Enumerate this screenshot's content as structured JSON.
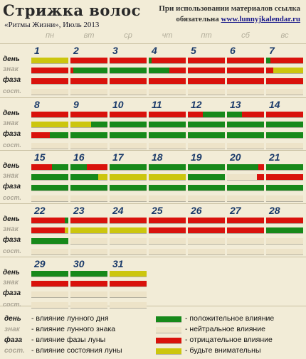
{
  "title": "Стрижка волос",
  "subtitle": "«Ритмы Жизни», Июль 2013",
  "note_line1": "При использовании материалов ссылка",
  "note_line2_prefix": "обязательна ",
  "note_link": "www.lunnyjkalendar.ru",
  "day_names": [
    "пн",
    "вт",
    "ср",
    "чт",
    "пт",
    "сб",
    "вс"
  ],
  "row_labels": [
    "день",
    "знак",
    "фаза",
    "сост."
  ],
  "colors": {
    "G": "#17891a",
    "R": "#d9120c",
    "Y": "#ccc60e",
    "N": "#ede3c8",
    "border": "#c9c0a2"
  },
  "days": [
    {
      "day": 1,
      "den": [
        [
          "Y",
          100
        ]
      ],
      "znak": [
        [
          "R",
          100
        ]
      ],
      "faza": [
        [
          "R",
          100
        ]
      ]
    },
    {
      "day": 2,
      "den": [
        [
          "R",
          100
        ]
      ],
      "znak": [
        [
          "R",
          8
        ],
        [
          "G",
          92
        ]
      ],
      "faza": [
        [
          "R",
          100
        ]
      ]
    },
    {
      "day": 3,
      "den": [
        [
          "R",
          100
        ]
      ],
      "znak": [
        [
          "G",
          100
        ]
      ],
      "faza": [
        [
          "R",
          100
        ]
      ]
    },
    {
      "day": 4,
      "den": [
        [
          "G",
          8
        ],
        [
          "R",
          92
        ]
      ],
      "znak": [
        [
          "G",
          55
        ],
        [
          "R",
          45
        ]
      ],
      "faza": [
        [
          "R",
          100
        ]
      ]
    },
    {
      "day": 5,
      "den": [
        [
          "R",
          100
        ]
      ],
      "znak": [
        [
          "R",
          100
        ]
      ],
      "faza": [
        [
          "R",
          100
        ]
      ]
    },
    {
      "day": 6,
      "den": [
        [
          "R",
          100
        ]
      ],
      "znak": [
        [
          "R",
          100
        ]
      ],
      "faza": [
        [
          "R",
          100
        ]
      ]
    },
    {
      "day": 7,
      "den": [
        [
          "G",
          12
        ],
        [
          "R",
          88
        ]
      ],
      "znak": [
        [
          "R",
          20
        ],
        [
          "Y",
          80
        ]
      ],
      "faza": [
        [
          "R",
          100
        ]
      ]
    },
    {
      "day": 8,
      "den": [
        [
          "R",
          100
        ]
      ],
      "znak": [
        [
          "Y",
          100
        ]
      ],
      "faza": [
        [
          "R",
          50
        ],
        [
          "G",
          50
        ]
      ]
    },
    {
      "day": 9,
      "den": [
        [
          "R",
          100
        ]
      ],
      "znak": [
        [
          "Y",
          55
        ],
        [
          "G",
          45
        ]
      ],
      "faza": [
        [
          "G",
          100
        ]
      ]
    },
    {
      "day": 10,
      "den": [
        [
          "R",
          100
        ]
      ],
      "znak": [
        [
          "G",
          100
        ]
      ],
      "faza": [
        [
          "G",
          100
        ]
      ]
    },
    {
      "day": 11,
      "den": [
        [
          "R",
          100
        ]
      ],
      "znak": [
        [
          "G",
          100
        ]
      ],
      "faza": [
        [
          "G",
          100
        ]
      ]
    },
    {
      "day": 12,
      "den": [
        [
          "R",
          40
        ],
        [
          "G",
          60
        ]
      ],
      "znak": [
        [
          "G",
          100
        ]
      ],
      "faza": [
        [
          "G",
          100
        ]
      ]
    },
    {
      "day": 13,
      "den": [
        [
          "G",
          40
        ],
        [
          "R",
          60
        ]
      ],
      "znak": [
        [
          "G",
          100
        ]
      ],
      "faza": [
        [
          "G",
          100
        ]
      ]
    },
    {
      "day": 14,
      "den": [
        [
          "R",
          100
        ]
      ],
      "znak": [
        [
          "G",
          100
        ]
      ],
      "faza": [
        [
          "G",
          100
        ]
      ]
    },
    {
      "day": 15,
      "den": [
        [
          "R",
          55
        ],
        [
          "G",
          45
        ]
      ],
      "znak": [
        [
          "G",
          100
        ]
      ],
      "faza": [
        [
          "G",
          100
        ]
      ]
    },
    {
      "day": 16,
      "den": [
        [
          "G",
          45
        ],
        [
          "R",
          55
        ]
      ],
      "znak": [
        [
          "G",
          75
        ],
        [
          "Y",
          25
        ]
      ],
      "faza": [
        [
          "G",
          100
        ]
      ]
    },
    {
      "day": 17,
      "den": [
        [
          "G",
          100
        ]
      ],
      "znak": [
        [
          "Y",
          100
        ]
      ],
      "faza": [
        [
          "G",
          100
        ]
      ]
    },
    {
      "day": 18,
      "den": [
        [
          "G",
          100
        ]
      ],
      "znak": [
        [
          "Y",
          100
        ]
      ],
      "faza": [
        [
          "G",
          100
        ]
      ]
    },
    {
      "day": 19,
      "den": [
        [
          "G",
          100
        ]
      ],
      "znak": [
        [
          "G",
          100
        ]
      ],
      "faza": [
        [
          "G",
          100
        ]
      ]
    },
    {
      "day": 20,
      "den": [
        [
          "G",
          85
        ],
        [
          "R",
          15
        ]
      ],
      "znak": [
        [
          "N",
          80
        ],
        [
          "R",
          20
        ]
      ],
      "faza": [
        [
          "G",
          100
        ]
      ]
    },
    {
      "day": 21,
      "den": [
        [
          "G",
          100
        ]
      ],
      "znak": [
        [
          "R",
          100
        ]
      ],
      "faza": [
        [
          "G",
          100
        ]
      ]
    },
    {
      "day": 22,
      "den": [
        [
          "R",
          90
        ],
        [
          "G",
          10
        ]
      ],
      "znak": [
        [
          "R",
          90
        ],
        [
          "Y",
          10
        ]
      ],
      "faza": [
        [
          "G",
          100
        ]
      ]
    },
    {
      "day": 23,
      "den": [
        [
          "R",
          100
        ]
      ],
      "znak": [
        [
          "Y",
          100
        ]
      ],
      "faza": [
        [
          "N",
          100
        ]
      ]
    },
    {
      "day": 24,
      "den": [
        [
          "R",
          100
        ]
      ],
      "znak": [
        [
          "Y",
          100
        ]
      ],
      "faza": [
        [
          "N",
          100
        ]
      ]
    },
    {
      "day": 25,
      "den": [
        [
          "R",
          100
        ]
      ],
      "znak": [
        [
          "R",
          100
        ]
      ],
      "faza": [
        [
          "N",
          100
        ]
      ]
    },
    {
      "day": 26,
      "den": [
        [
          "R",
          100
        ]
      ],
      "znak": [
        [
          "R",
          100
        ]
      ],
      "faza": [
        [
          "N",
          100
        ]
      ]
    },
    {
      "day": 27,
      "den": [
        [
          "R",
          100
        ]
      ],
      "znak": [
        [
          "R",
          100
        ]
      ],
      "faza": [
        [
          "N",
          100
        ]
      ]
    },
    {
      "day": 28,
      "den": [
        [
          "R",
          100
        ]
      ],
      "znak": [
        [
          "G",
          100
        ]
      ],
      "faza": [
        [
          "N",
          100
        ]
      ]
    },
    {
      "day": 29,
      "den": [
        [
          "G",
          100
        ]
      ],
      "znak": [
        [
          "R",
          100
        ]
      ],
      "faza": [
        [
          "N",
          100
        ]
      ]
    },
    {
      "day": 30,
      "den": [
        [
          "G",
          100
        ]
      ],
      "znak": [
        [
          "R",
          100
        ]
      ],
      "faza": [
        [
          "N",
          100
        ]
      ]
    },
    {
      "day": 31,
      "den": [
        [
          "Y",
          100
        ]
      ],
      "znak": [
        [
          "R",
          100
        ]
      ],
      "faza": [
        [
          "N",
          100
        ]
      ]
    }
  ],
  "legend": [
    {
      "label": "день",
      "text": "- влияние лунного дня"
    },
    {
      "label": "знак",
      "text": "- влияние лунного знака"
    },
    {
      "label": "фаза",
      "text": "- влияние фазы луны"
    },
    {
      "label": "сост.",
      "text": "- влияние состояния луны"
    }
  ],
  "legend_colors": [
    {
      "color": "G",
      "text": "- положительное влияние"
    },
    {
      "color": "N",
      "text": "- нейтральное влияние"
    },
    {
      "color": "R",
      "text": "- отрицательное влияние"
    },
    {
      "color": "Y",
      "text": "- будьте внимательны"
    }
  ]
}
